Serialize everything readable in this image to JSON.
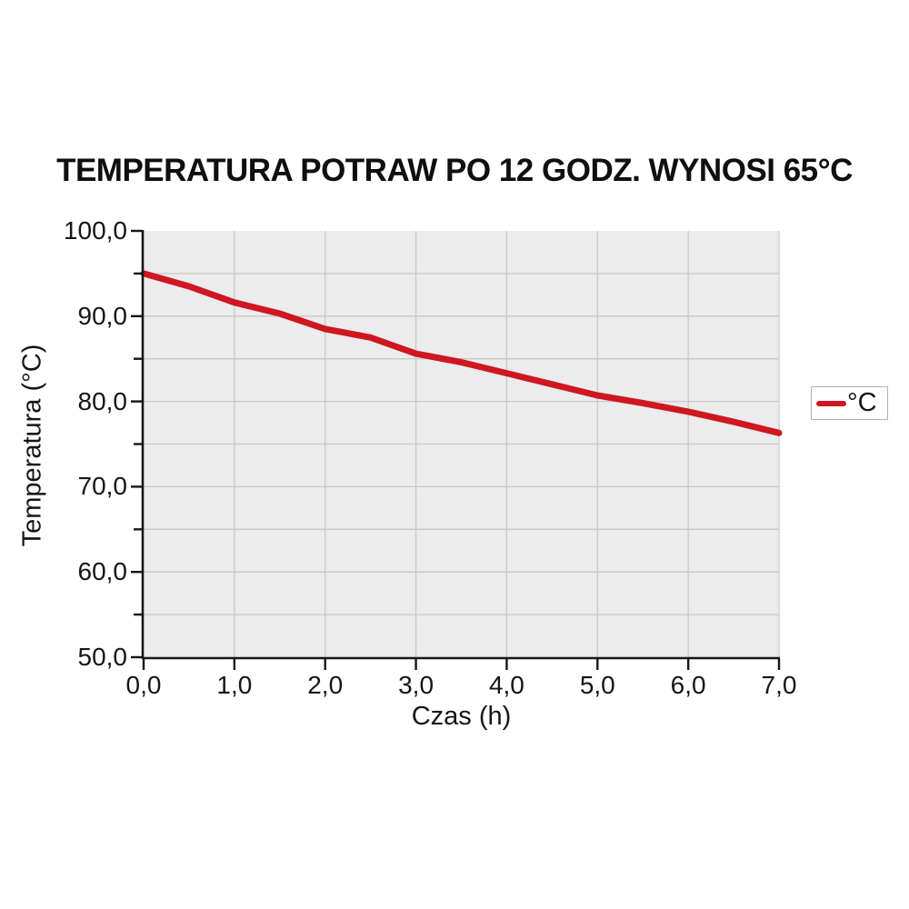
{
  "chart_data": {
    "type": "line",
    "title": "TEMPERATURA POTRAW PO 12 GODZ. WYNOSI 65°C",
    "xlabel": "Czas (h)",
    "ylabel": "Temperatura (°C)",
    "xlim": [
      0,
      7
    ],
    "ylim": [
      50,
      100
    ],
    "grid": true,
    "legend_position": "right-outside",
    "x": [
      0.0,
      0.5,
      1.0,
      1.5,
      2.0,
      2.5,
      3.0,
      3.5,
      4.0,
      4.5,
      5.0,
      5.5,
      6.0,
      6.5,
      7.0
    ],
    "series": [
      {
        "name": "°C",
        "color": "#ce1721",
        "values": [
          95.0,
          93.5,
          91.6,
          90.3,
          88.5,
          87.5,
          85.6,
          84.6,
          83.3,
          82.0,
          80.7,
          79.8,
          78.8,
          77.6,
          76.3
        ]
      }
    ],
    "x_tick_labels": [
      "0,0",
      "1,0",
      "2,0",
      "3,0",
      "4,0",
      "5,0",
      "6,0",
      "7,0"
    ],
    "y_tick_labels": [
      "100,0",
      "90,0",
      "80,0",
      "70,0",
      "60,0",
      "50,0"
    ]
  },
  "colors": {
    "line_red": "#ce1721",
    "plot_bg": "#ececec",
    "gridline": "#c9c9c9",
    "axis": "#161616",
    "legend_border": "#b3b3b3"
  }
}
